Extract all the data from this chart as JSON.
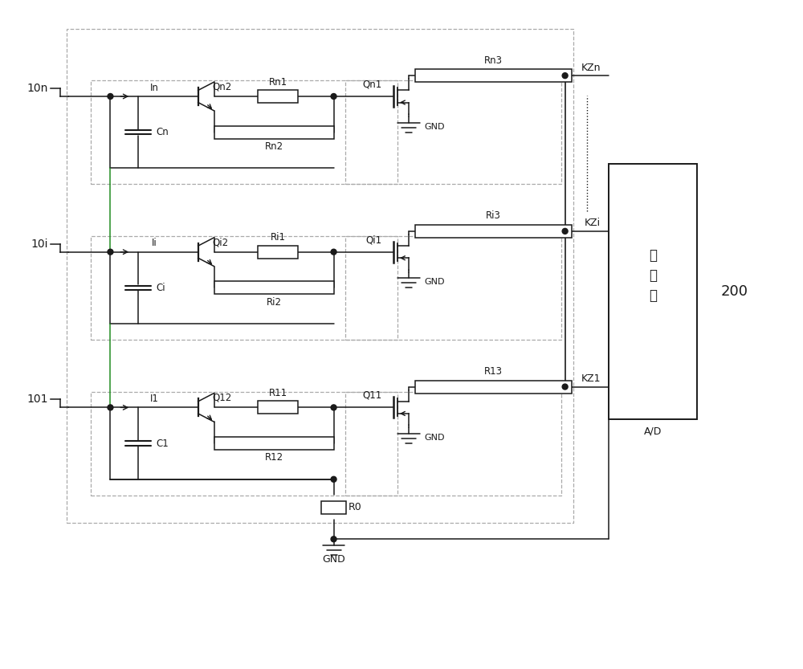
{
  "bg_color": "#ffffff",
  "line_color": "#1a1a1a",
  "dash_color": "#aaaaaa",
  "fig_width": 10.0,
  "fig_height": 8.33,
  "rows": [
    {
      "prefix": "n",
      "q2": "Qn2",
      "r1": "Rn1",
      "r2": "Rn2",
      "q1": "Qn1",
      "r3": "Rn3",
      "cap": "Cn",
      "curr": "In",
      "kz": "KZn",
      "node": "10n"
    },
    {
      "prefix": "i",
      "q2": "Qi2",
      "r1": "Ri1",
      "r2": "Ri2",
      "q1": "Qi1",
      "r3": "Ri3",
      "cap": "Ci",
      "curr": "Ii",
      "kz": "KZi",
      "node": "10i"
    },
    {
      "prefix": "1",
      "q2": "Q12",
      "r1": "R11",
      "r2": "R12",
      "q1": "Q11",
      "r3": "R13",
      "cap": "C1",
      "curr": "I1",
      "kz": "KZ1",
      "node": "101"
    }
  ]
}
